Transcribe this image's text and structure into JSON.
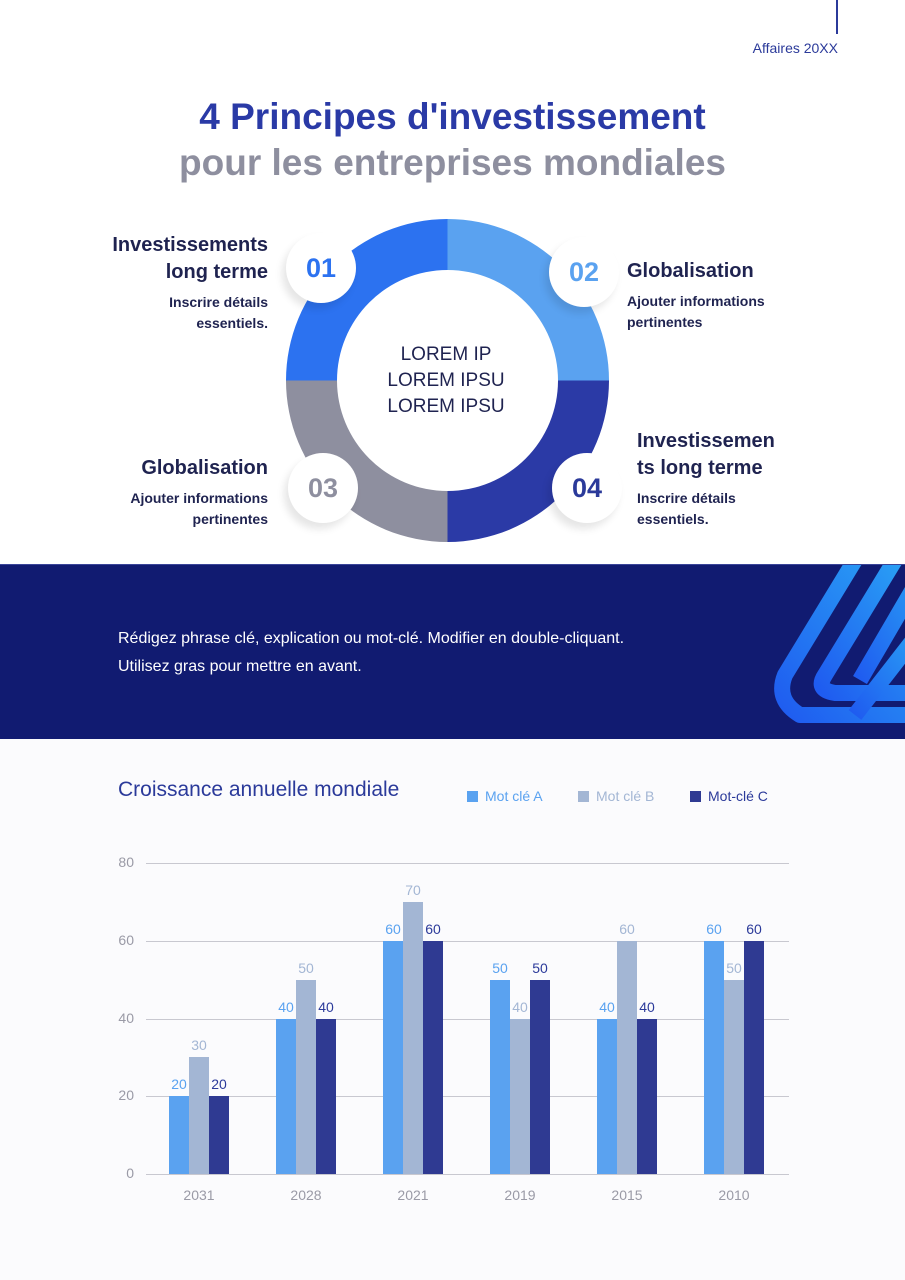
{
  "header": {
    "label": "Affaires 20XX",
    "title_line1": "4 Principes d'investissement",
    "title_line2": "pour les entreprises mondiales"
  },
  "ring": {
    "center_lines": [
      "LOREM IP",
      "LOREM IPSU",
      "LOREM IPSU"
    ],
    "colors": {
      "q1": "#2c72f0",
      "q2": "#5aa2f0",
      "q3": "#8e8f9f",
      "q4": "#2b3a9a"
    }
  },
  "principles": [
    {
      "number": "01",
      "title_lines": [
        "Investissements",
        "long terme"
      ],
      "desc_lines": [
        "Inscrire détails",
        "essentiels."
      ]
    },
    {
      "number": "02",
      "title_lines": [
        "Globalisation"
      ],
      "desc_lines": [
        "Ajouter informations",
        "pertinentes"
      ]
    },
    {
      "number": "03",
      "title_lines": [
        "Globalisation"
      ],
      "desc_lines": [
        "Ajouter informations",
        "pertinentes"
      ]
    },
    {
      "number": "04",
      "title_lines": [
        "Investissemen",
        "ts long terme"
      ],
      "desc_lines": [
        "Inscrire détails",
        "essentiels."
      ]
    }
  ],
  "banner": {
    "line1": "Rédigez phrase clé, explication ou mot-clé. Modifier en double-cliquant.",
    "line2": "Utilisez gras pour mettre en avant.",
    "background": "#111b71"
  },
  "chart_section": {
    "title": "Croissance annuelle mondiale",
    "legend": [
      {
        "label": "Mot clé A",
        "color": "#5aa2f0"
      },
      {
        "label": "Mot clé B",
        "color": "#a3b6d4"
      },
      {
        "label": "Mot-clé C",
        "color": "#2f3a92"
      }
    ]
  },
  "chart_data": {
    "type": "bar",
    "title": "Croissance annuelle mondiale",
    "xlabel": "",
    "ylabel": "",
    "categories": [
      "2031",
      "2028",
      "2021",
      "2019",
      "2015",
      "2010"
    ],
    "series": [
      {
        "name": "Mot clé A",
        "color": "#5aa2f0",
        "values": [
          20,
          40,
          60,
          50,
          40,
          60
        ]
      },
      {
        "name": "Mot clé B",
        "color": "#a3b6d4",
        "values": [
          30,
          50,
          70,
          40,
          60,
          50
        ]
      },
      {
        "name": "Mot-clé C",
        "color": "#2f3a92",
        "values": [
          20,
          40,
          60,
          50,
          40,
          60
        ]
      }
    ],
    "ylim": [
      0,
      80
    ],
    "yticks": [
      0,
      20,
      40,
      60,
      80
    ],
    "grid": true,
    "legend_position": "top-right",
    "data_labels": true
  }
}
